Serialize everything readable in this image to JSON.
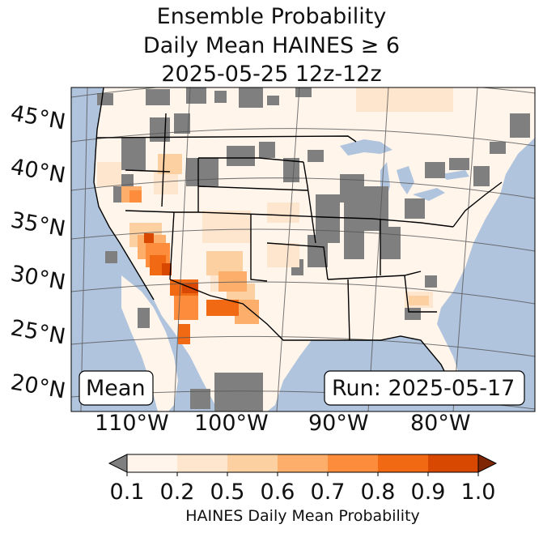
{
  "title": {
    "line1": "Ensemble Probability",
    "line2": "Daily Mean HAINES ≥ 6",
    "line3": "2025-05-25 12z-12z"
  },
  "latitude_labels": [
    "45°N",
    "40°N",
    "35°N",
    "30°N",
    "25°N",
    "20°N"
  ],
  "longitude_labels": [
    "110°W",
    "100°W",
    "90°W",
    "80°W"
  ],
  "stat_label": "Mean",
  "run_label": "Run: 2025-05-17",
  "colorbar": {
    "ticks": [
      "0.1",
      "0.2",
      "0.5",
      "0.6",
      "0.7",
      "0.8",
      "0.9",
      "1.0"
    ],
    "title": "HAINES Daily Mean Probability",
    "under_color": "#7f7f7f",
    "over_color": "#7f2704",
    "colors": [
      "#fff5eb",
      "#fee6ce",
      "#fdd0a2",
      "#fdae6b",
      "#fd8d3c",
      "#f16913",
      "#d94801"
    ]
  },
  "map_colors": {
    "ocean": "#b0c4de",
    "land": "#fff5eb",
    "below_threshold": "#7f7f7f"
  }
}
